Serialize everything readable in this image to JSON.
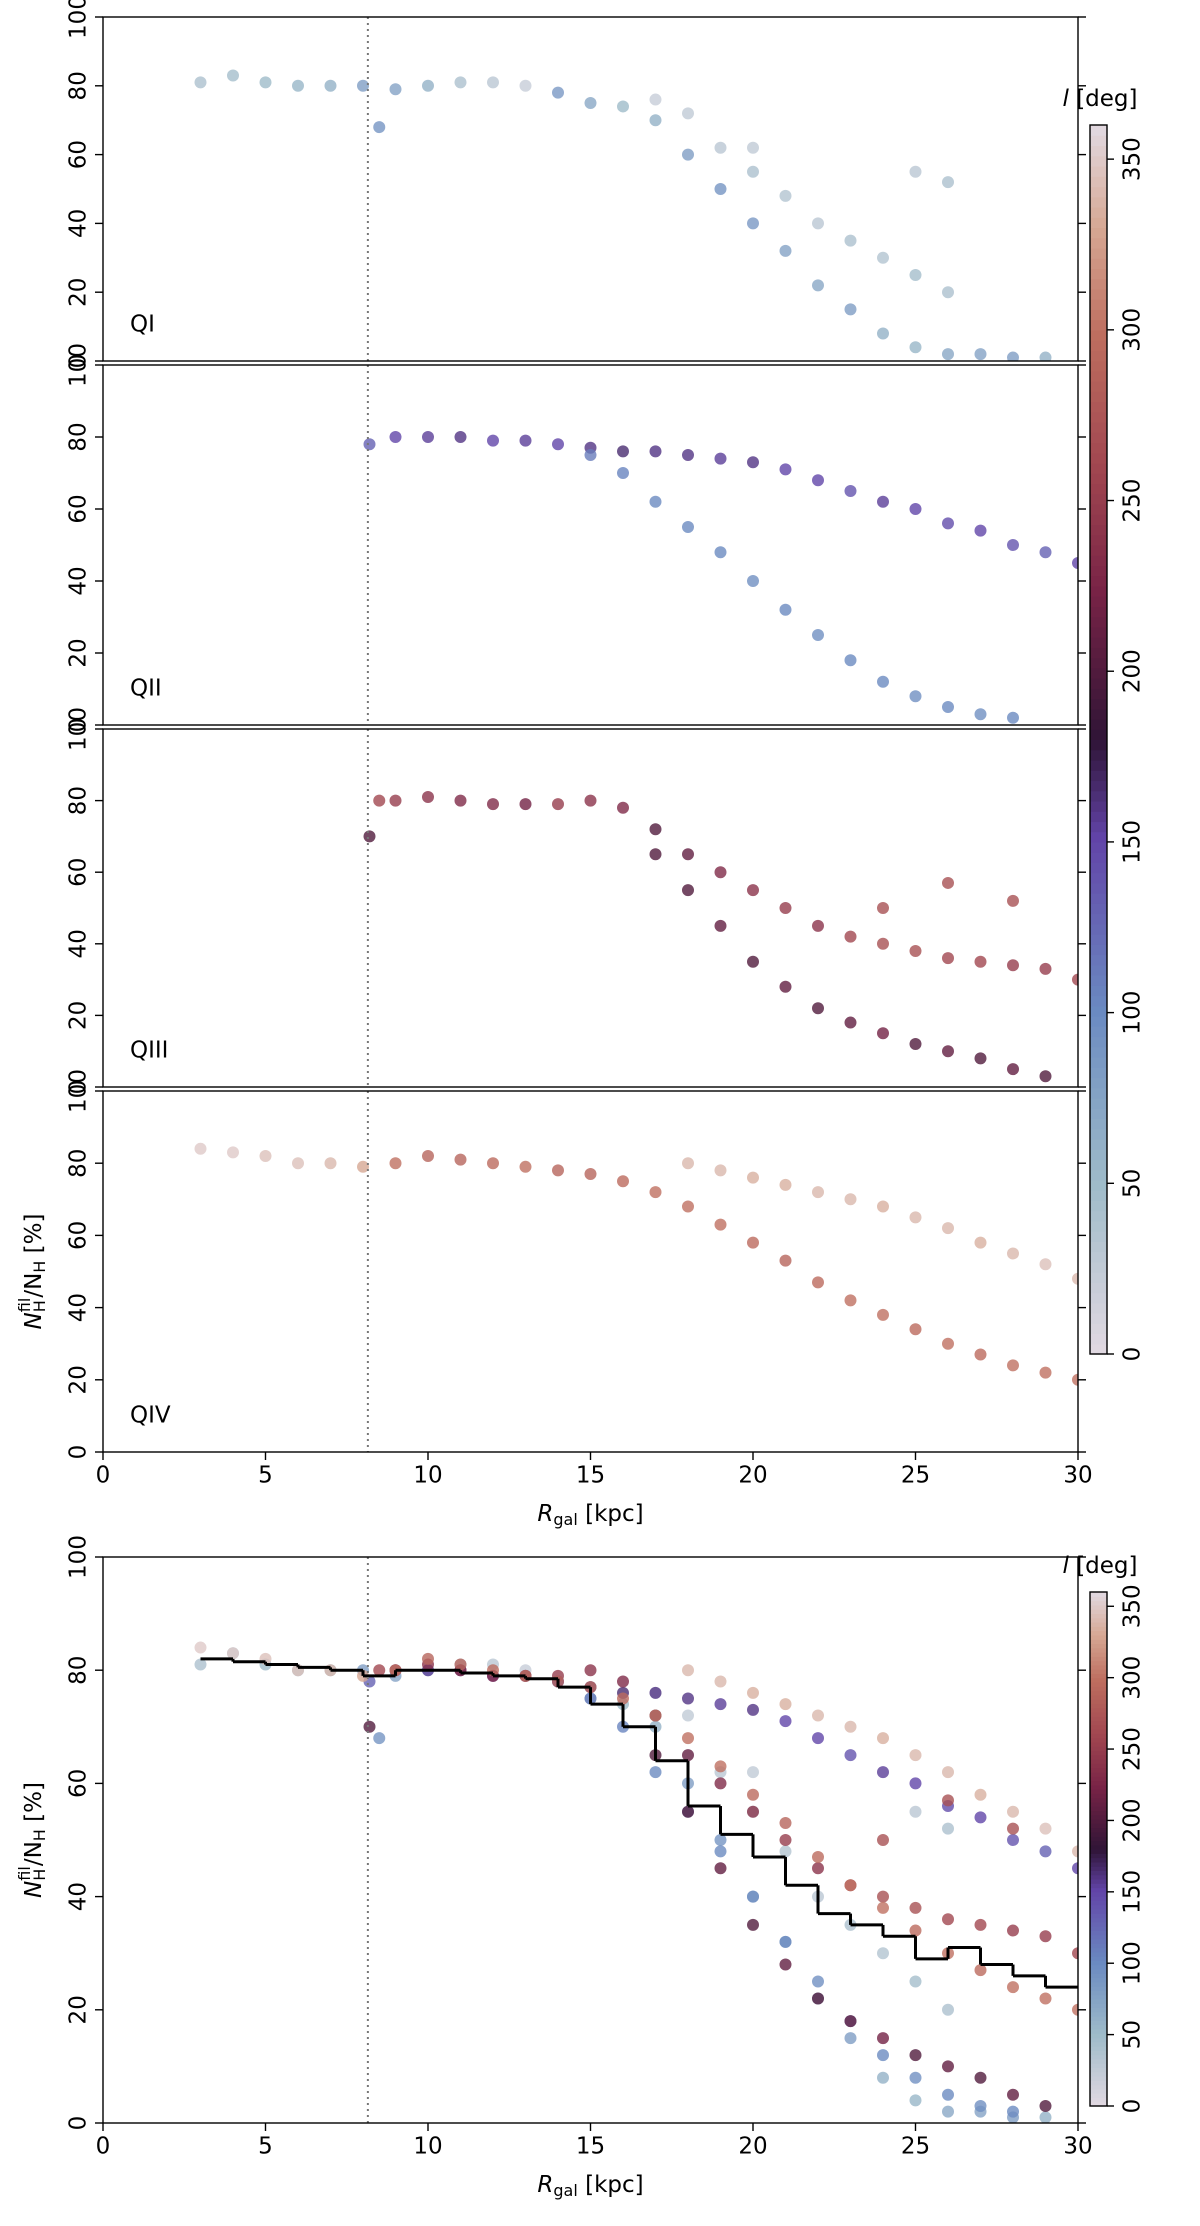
{
  "chart_data": [
    {
      "type": "scatter",
      "annotation": "QI",
      "xlim": [
        0,
        30
      ],
      "ylim": [
        0,
        100
      ],
      "yticks": [
        0,
        20,
        40,
        60,
        80,
        100
      ],
      "vline": 8.15,
      "colormap": "twilight",
      "x": [
        3,
        4,
        5,
        6,
        7,
        8,
        8.5,
        9,
        10,
        11,
        12,
        13,
        14,
        15,
        16,
        17,
        18,
        19,
        20,
        21,
        22,
        23,
        24,
        25,
        26,
        27,
        28,
        29,
        17,
        18,
        19,
        20,
        21,
        22,
        23,
        24,
        25,
        26,
        20,
        25,
        26
      ],
      "y": [
        81,
        83,
        81,
        80,
        80,
        80,
        68,
        79,
        80,
        81,
        81,
        80,
        78,
        75,
        74,
        70,
        60,
        50,
        40,
        32,
        22,
        15,
        8,
        4,
        2,
        2,
        1,
        1,
        76,
        72,
        62,
        55,
        48,
        40,
        35,
        30,
        25,
        20,
        62,
        55,
        52
      ],
      "c": [
        40,
        45,
        50,
        55,
        60,
        80,
        90,
        75,
        60,
        40,
        30,
        20,
        85,
        70,
        50,
        60,
        80,
        90,
        85,
        75,
        70,
        80,
        60,
        55,
        70,
        75,
        80,
        60,
        20,
        25,
        30,
        40,
        35,
        30,
        40,
        35,
        45,
        40,
        25,
        30,
        40
      ],
      "colorbar": {
        "label": {
          "main": "l",
          "rest": " [deg]"
        },
        "lim": [
          0,
          360
        ],
        "ticks": [
          0,
          50,
          100,
          150,
          200,
          250,
          300,
          350
        ]
      }
    },
    {
      "type": "scatter",
      "annotation": "QII",
      "xlim": [
        0,
        30
      ],
      "ylim": [
        0,
        100
      ],
      "yticks": [
        0,
        20,
        40,
        60,
        80,
        100
      ],
      "vline": 8.15,
      "x": [
        8.2,
        9,
        10,
        11,
        12,
        13,
        14,
        15,
        16,
        17,
        18,
        19,
        20,
        21,
        22,
        23,
        24,
        25,
        26,
        27,
        28,
        29,
        30,
        15,
        16,
        17,
        18,
        19,
        20,
        21,
        22,
        23,
        24,
        25,
        26,
        27,
        28
      ],
      "y": [
        78,
        80,
        80,
        80,
        79,
        79,
        78,
        77,
        76,
        76,
        75,
        74,
        73,
        71,
        68,
        65,
        62,
        60,
        56,
        54,
        50,
        48,
        45,
        75,
        70,
        62,
        55,
        48,
        40,
        32,
        25,
        18,
        12,
        8,
        5,
        3,
        2
      ],
      "c": [
        130,
        150,
        155,
        160,
        150,
        155,
        150,
        160,
        165,
        160,
        160,
        155,
        160,
        150,
        150,
        140,
        155,
        150,
        145,
        150,
        140,
        130,
        150,
        110,
        105,
        100,
        100,
        100,
        95,
        100,
        95,
        100,
        100,
        95,
        100,
        95,
        100
      ]
    },
    {
      "type": "scatter",
      "annotation": "QIII",
      "xlim": [
        0,
        30
      ],
      "ylim": [
        0,
        100
      ],
      "yticks": [
        0,
        20,
        40,
        60,
        80,
        100
      ],
      "vline": 8.15,
      "x": [
        8.2,
        8.5,
        9,
        10,
        11,
        12,
        13,
        14,
        15,
        16,
        17,
        18,
        19,
        20,
        21,
        22,
        23,
        24,
        25,
        26,
        27,
        28,
        29,
        30,
        17,
        18,
        19,
        20,
        21,
        22,
        23,
        24,
        25,
        26,
        27,
        28,
        29,
        24,
        26,
        28
      ],
      "y": [
        70,
        80,
        80,
        81,
        80,
        79,
        79,
        79,
        80,
        78,
        72,
        65,
        60,
        55,
        50,
        45,
        42,
        40,
        38,
        36,
        35,
        34,
        33,
        30,
        65,
        55,
        45,
        35,
        28,
        22,
        18,
        15,
        12,
        10,
        8,
        5,
        3,
        50,
        57,
        52
      ],
      "c": [
        200,
        260,
        250,
        240,
        230,
        230,
        220,
        250,
        240,
        230,
        200,
        210,
        230,
        240,
        250,
        240,
        260,
        270,
        270,
        260,
        260,
        250,
        250,
        260,
        200,
        200,
        210,
        200,
        210,
        200,
        210,
        220,
        200,
        210,
        200,
        210,
        200,
        270,
        270,
        270
      ]
    },
    {
      "type": "scatter",
      "annotation": "QIV",
      "xlim": [
        0,
        30
      ],
      "ylim": [
        0,
        100
      ],
      "yticks": [
        0,
        20,
        40,
        60,
        80,
        100
      ],
      "xticks": [
        0,
        5,
        10,
        15,
        20,
        25,
        30
      ],
      "vline": 8.15,
      "xlabel": {
        "main": "R",
        "sub": "gal",
        "rest": " [kpc]"
      },
      "ylabel": {
        "main": "N",
        "sub": "H",
        "sup": "fil",
        "mid": "/N",
        "sub2": "H",
        "rest": " [%]"
      },
      "x": [
        3,
        4,
        5,
        6,
        7,
        8,
        9,
        10,
        11,
        12,
        13,
        14,
        15,
        16,
        17,
        18,
        19,
        20,
        21,
        22,
        23,
        24,
        25,
        26,
        27,
        28,
        29,
        30,
        18,
        19,
        20,
        21,
        22,
        23,
        24,
        25,
        26,
        27,
        28,
        29,
        30
      ],
      "y": [
        84,
        83,
        82,
        80,
        80,
        79,
        80,
        82,
        81,
        80,
        79,
        78,
        77,
        75,
        72,
        68,
        63,
        58,
        53,
        47,
        42,
        38,
        34,
        30,
        27,
        24,
        22,
        20,
        80,
        78,
        76,
        74,
        72,
        70,
        68,
        65,
        62,
        58,
        55,
        52,
        48
      ],
      "c": [
        350,
        350,
        345,
        345,
        340,
        330,
        300,
        290,
        290,
        295,
        300,
        290,
        290,
        295,
        300,
        300,
        300,
        295,
        290,
        295,
        300,
        300,
        295,
        300,
        295,
        300,
        300,
        300,
        340,
        340,
        335,
        335,
        340,
        340,
        335,
        340,
        340,
        335,
        340,
        345,
        340
      ]
    },
    {
      "type": "scatter",
      "xlim": [
        0,
        30
      ],
      "ylim": [
        0,
        100
      ],
      "yticks": [
        0,
        20,
        40,
        60,
        80,
        100
      ],
      "xticks": [
        0,
        5,
        10,
        15,
        20,
        25,
        30
      ],
      "vline": 8.15,
      "xlabel": {
        "main": "R",
        "sub": "gal",
        "rest": " [kpc]"
      },
      "ylabel": {
        "main": "N",
        "sub": "H",
        "sup": "fil",
        "mid": "/N",
        "sub2": "H",
        "rest": " [%]"
      },
      "colorbar": {
        "label": {
          "main": "l",
          "rest": " [deg]"
        },
        "lim": [
          0,
          360
        ],
        "ticks": [
          0,
          50,
          100,
          150,
          200,
          250,
          300,
          350
        ]
      },
      "step": {
        "color": "#000000",
        "bins": [
          3,
          4,
          5,
          6,
          7,
          8,
          9,
          10,
          11,
          12,
          13,
          14,
          15,
          16,
          17,
          18,
          19,
          20,
          21,
          22,
          23,
          24,
          25,
          26,
          27,
          28,
          29,
          30
        ],
        "values": [
          82,
          81.5,
          81,
          80.5,
          80,
          79,
          80,
          80,
          79.5,
          79,
          78.5,
          77,
          74,
          70,
          64,
          56,
          51,
          47,
          42,
          37,
          35,
          33,
          29,
          31,
          28,
          26,
          24
        ]
      }
    }
  ]
}
